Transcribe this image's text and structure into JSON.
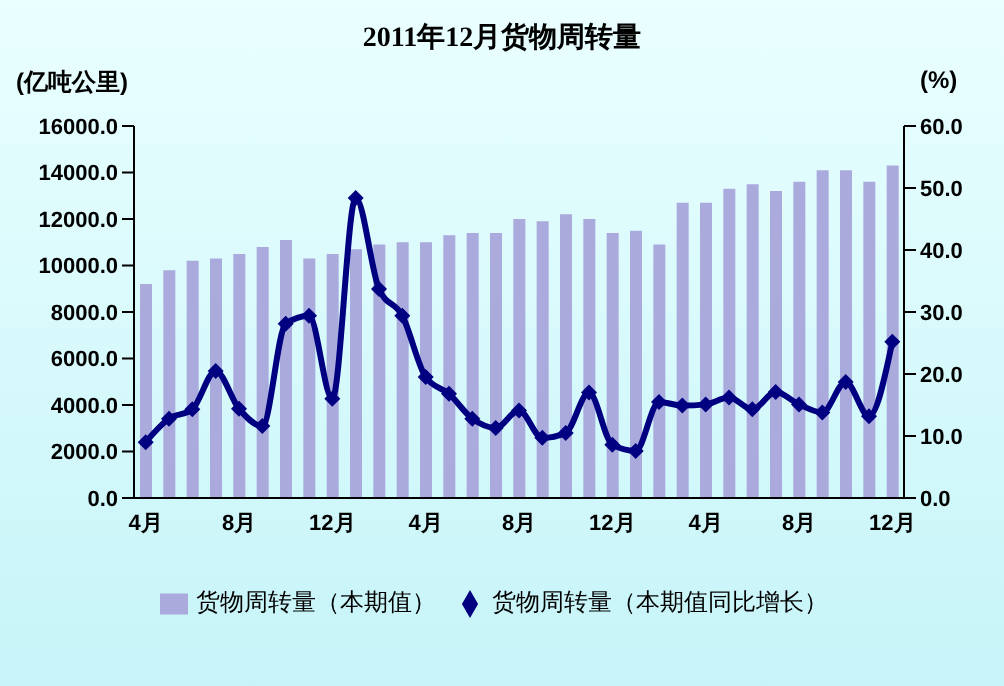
{
  "chart_data": {
    "type": "bar",
    "title": "2011年12月货物周转量",
    "ylabel": "(亿吨公里)",
    "y2label": "(%)",
    "categories": [
      "4月",
      null,
      null,
      null,
      "8月",
      null,
      null,
      null,
      "12月",
      null,
      null,
      null,
      "4月",
      null,
      null,
      null,
      "8月",
      null,
      null,
      null,
      "12月",
      null,
      null,
      null,
      "4月",
      null,
      null,
      null,
      "8月",
      null,
      null,
      null,
      "12月"
    ],
    "series": [
      {
        "name": "货物周转量（本期值）",
        "color": "#aaaadd",
        "values": [
          9200,
          9800,
          10200,
          10300,
          10500,
          10800,
          11100,
          10300,
          10500,
          10700,
          10900,
          11000,
          11000,
          11300,
          11400,
          11400,
          12000,
          11900,
          12200,
          12000,
          11400,
          11500,
          10900,
          12700,
          12700,
          13300,
          13500,
          13200,
          13600,
          14100,
          14100,
          13600,
          14300
        ]
      },
      {
        "name": "货物周转量（本期值同比增长）",
        "type": "line",
        "axis": "y2",
        "color": "#000080",
        "marker": "diamond",
        "values": [
          9.0,
          12.8,
          14.3,
          20.5,
          14.4,
          11.6,
          28.1,
          29.4,
          16.0,
          48.4,
          33.7,
          29.4,
          19.5,
          16.8,
          12.8,
          11.3,
          14.1,
          9.7,
          10.5,
          17.0,
          8.6,
          7.6,
          15.5,
          14.9,
          15.1,
          16.2,
          14.3,
          17.1,
          15.1,
          13.8,
          18.7,
          13.2,
          25.2
        ]
      }
    ],
    "ylim": [
      0,
      16000
    ],
    "yticks": [
      {
        "value": 0,
        "label": "0.0"
      },
      {
        "value": 2000,
        "label": "2000.0"
      },
      {
        "value": 4000,
        "label": "4000.0"
      },
      {
        "value": 6000,
        "label": "6000.0"
      },
      {
        "value": 8000,
        "label": "8000.0"
      },
      {
        "value": 10000,
        "label": "10000.0"
      },
      {
        "value": 12000,
        "label": "12000.0"
      },
      {
        "value": 14000,
        "label": "14000.0"
      },
      {
        "value": 16000,
        "label": "16000.0"
      }
    ],
    "y2lim": [
      0,
      60
    ],
    "y2ticks": [
      {
        "value": 0,
        "label": "0.0"
      },
      {
        "value": 10,
        "label": "10.0"
      },
      {
        "value": 20,
        "label": "20.0"
      },
      {
        "value": 30,
        "label": "30.0"
      },
      {
        "value": 40,
        "label": "40.0"
      },
      {
        "value": 50,
        "label": "50.0"
      },
      {
        "value": 60,
        "label": "60.0"
      }
    ],
    "grid": false,
    "legend": "bottom"
  }
}
